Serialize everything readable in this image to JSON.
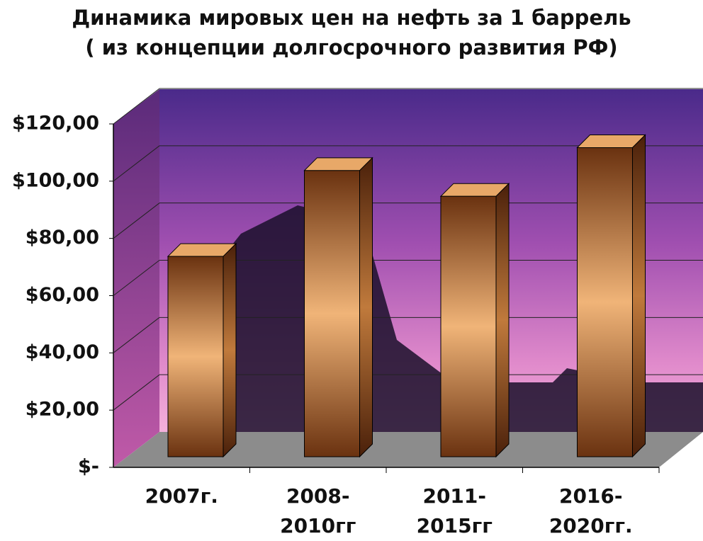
{
  "chart_data": {
    "type": "bar3d",
    "title": "Динамика мировых цен на нефть за 1 баррель\n( из концепции долгосрочного развития РФ)",
    "categories": [
      "2007г.",
      "2008-\n2010гг",
      "2011-\n2015гг",
      "2016-\n2020гг."
    ],
    "values": [
      70,
      100,
      91,
      108
    ],
    "color": "#c07a3c",
    "ylim": [
      0,
      120
    ],
    "yticks": [
      {
        "value": 0,
        "label": "$-"
      },
      {
        "value": 20,
        "label": "$20,00"
      },
      {
        "value": 40,
        "label": "$40,00"
      },
      {
        "value": 60,
        "label": "$60,00"
      },
      {
        "value": 80,
        "label": "$80,00"
      },
      {
        "value": 100,
        "label": "$100,00"
      },
      {
        "value": 120,
        "label": "$120,00"
      }
    ],
    "grid": true
  }
}
